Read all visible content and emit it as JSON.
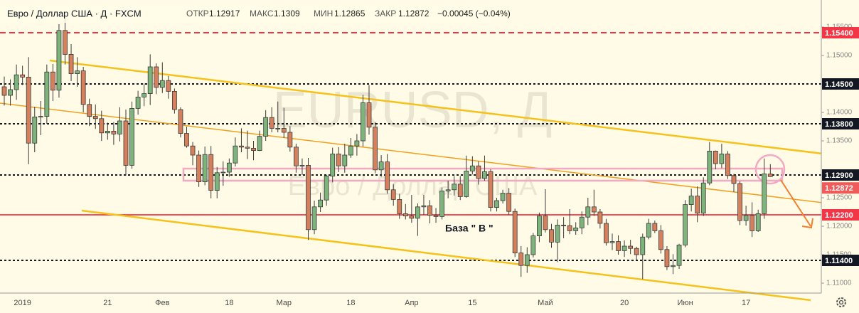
{
  "chart_data": {
    "type": "candlestick",
    "title": "Евро / Доллар США · Д · FXCM",
    "ohlc_labels": {
      "open": "ОТКР",
      "high": "МАКС",
      "low": "МИН",
      "close": "ЗАКР"
    },
    "change": "−0.00045 (−0.04%)",
    "watermark": "EURUSD, Д",
    "watermark_subtitle": "Евро / Доллар США",
    "annotation": "База  \" В \"",
    "up_color": "#7cb47c",
    "down_color": "#d4805c",
    "last_color": "#ef5a5a",
    "categories": [
      null,
      null,
      null,
      "2019",
      null,
      null,
      null,
      null,
      null,
      null,
      null,
      null,
      null,
      null,
      null,
      null,
      null,
      "21",
      null,
      null,
      null,
      null,
      null,
      null,
      null,
      null,
      "Фев",
      null,
      null,
      null,
      null,
      null,
      null,
      null,
      null,
      null,
      null,
      "18",
      null,
      null,
      null,
      null,
      null,
      null,
      null,
      null,
      "Мар",
      null,
      null,
      null,
      null,
      null,
      null,
      null,
      null,
      null,
      null,
      "18",
      null,
      null,
      null,
      null,
      null,
      null,
      null,
      null,
      null,
      "Апр",
      null,
      null,
      null,
      null,
      null,
      null,
      null,
      null,
      null,
      "15",
      null,
      null,
      null,
      null,
      null,
      null,
      null,
      null,
      null,
      null,
      null,
      "Май",
      null,
      null,
      null,
      null,
      null,
      null,
      null,
      null,
      null,
      null,
      null,
      null,
      "20",
      null,
      null,
      null,
      null,
      null,
      null,
      null,
      null,
      null,
      "Июн",
      null,
      null,
      null,
      null,
      null,
      null,
      null,
      null,
      null,
      "17",
      null,
      null,
      null,
      null
    ],
    "open": [
      1.1445,
      1.143,
      1.144,
      1.1466,
      1.1462,
      1.1346,
      1.1392,
      1.1393,
      1.1471,
      1.1439,
      1.1544,
      1.1502,
      1.1468,
      1.1473,
      1.1414,
      1.1393,
      1.1389,
      1.1364,
      1.1367,
      1.1362,
      1.1385,
      1.1307,
      1.1407,
      1.1427,
      1.1433,
      1.148,
      1.1444,
      1.1456,
      1.1437,
      1.1405,
      1.1363,
      1.1341,
      1.1325,
      1.1278,
      1.1326,
      1.1263,
      1.1294,
      1.1295,
      1.1311,
      1.1341,
      1.1339,
      1.1337,
      1.1333,
      1.1358,
      1.1391,
      1.1372,
      1.1372,
      1.1365,
      1.1339,
      1.1306,
      1.1307,
      1.1194,
      1.1234,
      1.1246,
      1.1288,
      1.1327,
      1.1306,
      1.1325,
      1.1341,
      1.135,
      1.1417,
      1.1374,
      1.1299,
      1.1313,
      1.1264,
      1.1247,
      1.1222,
      1.1218,
      1.1214,
      1.1234,
      1.1236,
      1.1219,
      1.1217,
      1.1262,
      1.1264,
      1.1274,
      1.1252,
      1.1297,
      1.1306,
      1.1284,
      1.1296,
      1.1233,
      1.1245,
      1.1258,
      1.1226,
      1.1153,
      1.1131,
      1.115,
      1.1183,
      1.1218,
      1.1194,
      1.1172,
      1.1202,
      1.1201,
      1.1192,
      1.1197,
      1.1216,
      1.1234,
      1.1225,
      1.1205,
      1.1171,
      1.1173,
      1.1157,
      1.1165,
      1.1161,
      1.115,
      1.1181,
      1.1205,
      1.1192,
      1.1159,
      1.1129,
      1.1131,
      1.1167,
      1.1238,
      1.1253,
      1.1223,
      1.1276,
      1.1332,
      1.131,
      1.1327,
      1.1289,
      1.1275,
      1.121,
      1.1219,
      1.1192,
      1.1222,
      1.12917
    ],
    "high": [
      1.1463,
      1.1458,
      1.1484,
      1.1482,
      1.1497,
      1.141,
      1.142,
      1.1484,
      1.1485,
      1.1555,
      1.157,
      1.152,
      1.1497,
      1.148,
      1.1424,
      1.1414,
      1.1403,
      1.1382,
      1.1383,
      1.1409,
      1.1405,
      1.1419,
      1.1438,
      1.1451,
      1.1502,
      1.1486,
      1.1488,
      1.1464,
      1.1442,
      1.1409,
      1.1375,
      1.1348,
      1.1333,
      1.134,
      1.1341,
      1.1304,
      1.1314,
      1.1319,
      1.1356,
      1.1372,
      1.1368,
      1.135,
      1.1368,
      1.1404,
      1.1409,
      1.1419,
      1.1408,
      1.1376,
      1.1345,
      1.1319,
      1.132,
      1.1245,
      1.1259,
      1.129,
      1.1338,
      1.1339,
      1.1345,
      1.1355,
      1.1362,
      1.1431,
      1.1448,
      1.1383,
      1.1325,
      1.1327,
      1.1274,
      1.1257,
      1.1239,
      1.1255,
      1.124,
      1.1255,
      1.1246,
      1.1232,
      1.1268,
      1.128,
      1.1288,
      1.1288,
      1.1324,
      1.1323,
      1.1314,
      1.1324,
      1.13,
      1.125,
      1.1264,
      1.1267,
      1.1231,
      1.1165,
      1.1163,
      1.1188,
      1.1224,
      1.1265,
      1.1204,
      1.1212,
      1.1216,
      1.123,
      1.1207,
      1.1226,
      1.125,
      1.1264,
      1.123,
      1.1213,
      1.1187,
      1.1184,
      1.1175,
      1.1176,
      1.1164,
      1.1187,
      1.1213,
      1.121,
      1.1202,
      1.1165,
      1.1151,
      1.1169,
      1.1246,
      1.1266,
      1.127,
      1.1286,
      1.1348,
      1.1333,
      1.1345,
      1.1332,
      1.1292,
      1.1279,
      1.1236,
      1.1242,
      1.1229,
      1.1319,
      1.1309
    ],
    "low": [
      1.1412,
      1.1412,
      1.1422,
      1.1448,
      1.1309,
      1.133,
      1.136,
      1.138,
      1.142,
      1.1426,
      1.1484,
      1.1455,
      1.1445,
      1.14,
      1.1376,
      1.1371,
      1.135,
      1.1352,
      1.1343,
      1.1349,
      1.1289,
      1.1301,
      1.1396,
      1.1411,
      1.1413,
      1.1432,
      1.1434,
      1.1424,
      1.1398,
      1.1356,
      1.1338,
      1.1307,
      1.1269,
      1.1272,
      1.1249,
      1.1249,
      1.1271,
      1.1287,
      1.1305,
      1.133,
      1.1318,
      1.1316,
      1.1332,
      1.135,
      1.1365,
      1.1365,
      1.1355,
      1.1331,
      1.1294,
      1.129,
      1.1176,
      1.1186,
      1.1225,
      1.1236,
      1.1277,
      1.1295,
      1.1294,
      1.132,
      1.1324,
      1.134,
      1.1361,
      1.1293,
      1.1287,
      1.1257,
      1.1236,
      1.1213,
      1.1212,
      1.1206,
      1.1183,
      1.122,
      1.1205,
      1.1206,
      1.1212,
      1.1249,
      1.1254,
      1.1246,
      1.125,
      1.1291,
      1.1273,
      1.128,
      1.1226,
      1.1226,
      1.124,
      1.122,
      1.1146,
      1.1111,
      1.1118,
      1.1145,
      1.1172,
      1.1189,
      1.1162,
      1.1137,
      1.1179,
      1.1186,
      1.1185,
      1.1186,
      1.1202,
      1.1218,
      1.1196,
      1.1166,
      1.1158,
      1.115,
      1.1146,
      1.1151,
      1.114,
      1.1107,
      1.1177,
      1.1188,
      1.1152,
      1.1123,
      1.1116,
      1.1125,
      1.1163,
      1.1226,
      1.1207,
      1.1218,
      1.1272,
      1.13,
      1.1302,
      1.1283,
      1.126,
      1.1202,
      1.1201,
      1.1181,
      1.119,
      1.1213,
      1.12865
    ],
    "close": [
      1.143,
      1.144,
      1.1466,
      1.1462,
      1.1346,
      1.1392,
      1.1393,
      1.1471,
      1.1439,
      1.1544,
      1.1502,
      1.1468,
      1.1473,
      1.1414,
      1.1393,
      1.1389,
      1.1364,
      1.1367,
      1.1362,
      1.1385,
      1.1307,
      1.1407,
      1.1427,
      1.1433,
      1.148,
      1.1444,
      1.1456,
      1.1437,
      1.1405,
      1.1363,
      1.1341,
      1.1325,
      1.1278,
      1.1326,
      1.1263,
      1.1294,
      1.1295,
      1.1311,
      1.1341,
      1.1339,
      1.1337,
      1.1333,
      1.1358,
      1.1391,
      1.1372,
      1.1372,
      1.1365,
      1.1339,
      1.1306,
      1.1307,
      1.1194,
      1.1234,
      1.1246,
      1.1288,
      1.1327,
      1.1306,
      1.1325,
      1.1341,
      1.135,
      1.1417,
      1.1374,
      1.1299,
      1.1313,
      1.1264,
      1.1247,
      1.1222,
      1.1218,
      1.1214,
      1.1234,
      1.1236,
      1.1219,
      1.1217,
      1.1262,
      1.1264,
      1.1274,
      1.1252,
      1.1297,
      1.1306,
      1.1284,
      1.1296,
      1.1233,
      1.1245,
      1.1258,
      1.1226,
      1.1153,
      1.1131,
      1.115,
      1.1183,
      1.1218,
      1.1194,
      1.1172,
      1.1202,
      1.1201,
      1.1192,
      1.1197,
      1.1216,
      1.1234,
      1.1225,
      1.1205,
      1.1171,
      1.1173,
      1.1157,
      1.1165,
      1.1161,
      1.115,
      1.1181,
      1.1205,
      1.1192,
      1.1159,
      1.1129,
      1.1131,
      1.1167,
      1.1238,
      1.1253,
      1.1223,
      1.1276,
      1.1332,
      1.131,
      1.1327,
      1.1289,
      1.1275,
      1.121,
      1.1219,
      1.1192,
      1.1222,
      1.1292,
      1.12872
    ],
    "ylim": [
      1.10825,
      1.15975
    ],
    "yticks": [
      {
        "value": 1.155,
        "label": "1.15500"
      },
      {
        "value": 1.15,
        "label": "1.15000"
      },
      {
        "value": 1.14,
        "label": "1.14000"
      },
      {
        "value": 1.135,
        "label": "1.13500"
      },
      {
        "value": 1.125,
        "label": "1.12500"
      },
      {
        "value": 1.12,
        "label": "1.12000"
      },
      {
        "value": 1.115,
        "label": "1.11500"
      },
      {
        "value": 1.11,
        "label": "1.11000"
      }
    ],
    "levels": [
      {
        "value": 1.154,
        "label": "1.15400",
        "color": "#f23645",
        "style": "dashed"
      },
      {
        "value": 1.145,
        "label": "1.14500",
        "color": "#131722",
        "style": "dotted"
      },
      {
        "value": 1.138,
        "label": "1.13800",
        "color": "#131722",
        "style": "dotted"
      },
      {
        "value": 1.129,
        "label": "1.12900",
        "color": "#131722",
        "style": "dotted"
      },
      {
        "value": 1.122,
        "label": "1.12200",
        "color": "#f23645",
        "style": "solid"
      },
      {
        "value": 1.114,
        "label": "1.11400",
        "color": "#131722",
        "style": "dotted"
      }
    ]
  }
}
